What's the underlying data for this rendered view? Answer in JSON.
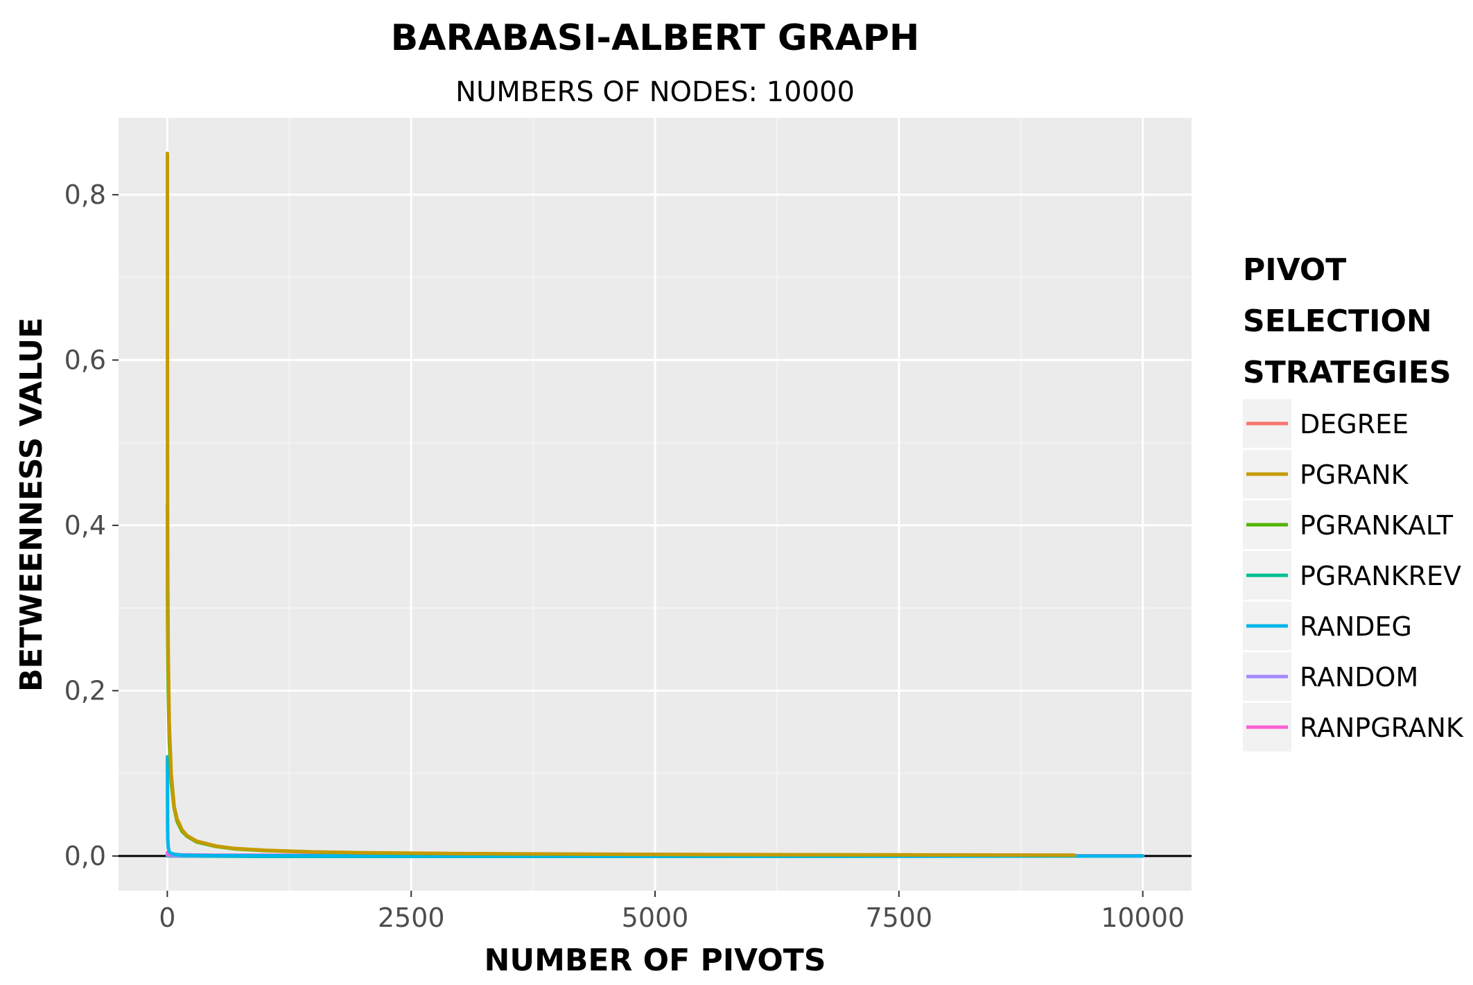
{
  "chart_data": {
    "type": "line",
    "title": "BARABASI-ALBERT GRAPH",
    "subtitle": "NUMBERS OF NODES: 10000",
    "xlabel": "NUMBER OF PIVOTS",
    "ylabel": "BETWEENNESS VALUE",
    "xlim": [
      -500,
      10500
    ],
    "ylim": [
      -0.042,
      0.893
    ],
    "x_ticks": [
      0,
      2500,
      5000,
      7500,
      10000
    ],
    "x_tick_labels": [
      "0",
      "2500",
      "5000",
      "7500",
      "10000"
    ],
    "y_ticks": [
      0.0,
      0.2,
      0.4,
      0.6,
      0.8
    ],
    "y_tick_labels": [
      "0,0",
      "0,2",
      "0,4",
      "0,6",
      "0,8"
    ],
    "grid": true,
    "background": "#ebebeb",
    "zero_line": true,
    "legend": {
      "title_lines": [
        "PIVOT",
        "SELECTION",
        "STRATEGIES"
      ],
      "position": "right"
    },
    "series": [
      {
        "name": "DEGREE",
        "color": "#f8766d",
        "x": [
          1,
          2,
          5,
          10,
          30,
          100,
          500,
          2000,
          4600
        ],
        "y": [
          0.004,
          0.003,
          0.002,
          0.002,
          0.001,
          0.001,
          0.0008,
          0.0005,
          0.0003
        ]
      },
      {
        "name": "PGRANK",
        "color": "#c49a00",
        "x": [
          1,
          2,
          3,
          5,
          10,
          20,
          40,
          70,
          100,
          150,
          200,
          300,
          500,
          700,
          1000,
          1500,
          2000,
          3000,
          4000,
          5000,
          6000,
          7000,
          8000,
          9000,
          9300
        ],
        "y": [
          0.85,
          0.48,
          0.4,
          0.33,
          0.24,
          0.16,
          0.1,
          0.06,
          0.045,
          0.032,
          0.025,
          0.018,
          0.012,
          0.009,
          0.007,
          0.005,
          0.004,
          0.003,
          0.0024,
          0.002,
          0.0017,
          0.0015,
          0.0013,
          0.0011,
          0.001
        ]
      },
      {
        "name": "PGRANKALT",
        "color": "#53b400",
        "x": [
          1,
          2,
          3,
          5,
          10,
          20,
          40,
          70,
          100,
          150,
          200,
          300,
          500,
          700,
          1000,
          1500,
          2000,
          3000,
          4000,
          5000,
          6000,
          7000,
          8000,
          9000,
          9300
        ],
        "y": [
          0.425,
          0.35,
          0.3,
          0.26,
          0.2,
          0.14,
          0.09,
          0.058,
          0.042,
          0.03,
          0.024,
          0.017,
          0.0115,
          0.0085,
          0.0065,
          0.0048,
          0.0038,
          0.0028,
          0.0022,
          0.0018,
          0.0015,
          0.0013,
          0.0012,
          0.001,
          0.0009
        ]
      },
      {
        "name": "PGRANKREV",
        "color": "#00c094",
        "x": [
          1,
          5,
          20,
          100,
          1000,
          5000,
          10000
        ],
        "y": [
          0.0,
          0.0,
          0.0,
          0.0,
          -0.0005,
          -0.0005,
          0.0
        ]
      },
      {
        "name": "RANDEG",
        "color": "#00b6eb",
        "x": [
          1,
          2,
          3,
          5,
          10,
          20,
          40,
          80,
          150,
          400,
          1000,
          5000,
          10000
        ],
        "y": [
          0.12,
          0.07,
          0.04,
          0.02,
          0.01,
          0.005,
          0.003,
          0.002,
          0.001,
          0.0006,
          0.0003,
          -0.0003,
          0.0
        ]
      },
      {
        "name": "RANDOM",
        "color": "#a58aff",
        "x": [
          1,
          10,
          100,
          1000,
          5000,
          10000
        ],
        "y": [
          0.001,
          0.0008,
          0.0005,
          0.0003,
          0.0001,
          0.0
        ]
      },
      {
        "name": "RANPGRANK",
        "color": "#fb61d7",
        "x": [
          1,
          5,
          20,
          100,
          500,
          2000,
          5000,
          8000,
          10000
        ],
        "y": [
          0.004,
          0.003,
          0.002,
          0.0015,
          0.001,
          0.0008,
          0.0005,
          0.0003,
          0.0002
        ]
      }
    ]
  }
}
